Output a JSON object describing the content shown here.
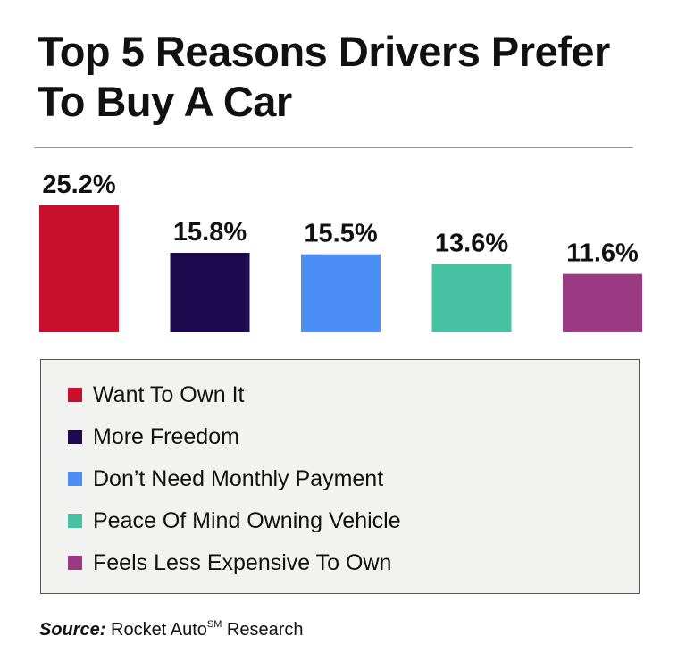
{
  "chart_data": {
    "type": "bar",
    "title": "Top 5 Reasons Drivers Prefer To Buy A Car",
    "categories": [
      "Want To Own It",
      "More Freedom",
      "Don’t Need Monthly Payment",
      "Peace Of Mind Owning Vehicle",
      "Feels Less Expensive To Own"
    ],
    "values": [
      25.2,
      15.8,
      15.5,
      13.6,
      11.6
    ],
    "value_labels": [
      "25.2%",
      "15.8%",
      "15.5%",
      "13.6%",
      "11.6%"
    ],
    "colors": [
      "#c8102e",
      "#1e0a4f",
      "#4b8ef5",
      "#46c2a3",
      "#9b3a82"
    ],
    "xlabel": "",
    "ylabel": "",
    "ylim": [
      0,
      25.2
    ],
    "grid": false,
    "legend_position": "bottom"
  },
  "source": {
    "label": "Source:",
    "text": "Rocket Auto",
    "superscript": "SM",
    "suffix": " Research"
  }
}
